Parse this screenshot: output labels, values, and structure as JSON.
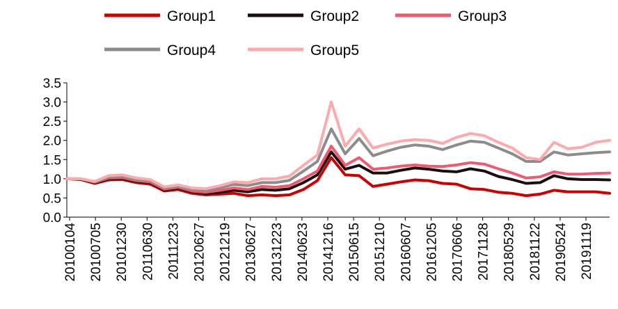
{
  "chart_data": {
    "type": "line",
    "title": "",
    "xlabel": "",
    "ylabel": "",
    "ylim": [
      0,
      3.5
    ],
    "y_ticks": [
      "0.0",
      "0.5",
      "1.0",
      "1.5",
      "2.0",
      "2.5",
      "3.0",
      "3.5"
    ],
    "x_tick_labels": [
      "20100104",
      "20100705",
      "20101230",
      "20110630",
      "20111223",
      "20120627",
      "20121219",
      "20130627",
      "20131223",
      "20140623",
      "20141216",
      "20150615",
      "20151210",
      "20160607",
      "20161205",
      "20170606",
      "20171128",
      "20180529",
      "20181122",
      "20190524",
      "20191119"
    ],
    "grid": false,
    "legend_position": "top",
    "series": [
      {
        "name": "Group1",
        "color": "#cc0000",
        "values": [
          1.0,
          0.98,
          0.88,
          0.97,
          0.98,
          0.9,
          0.86,
          0.68,
          0.72,
          0.62,
          0.58,
          0.6,
          0.62,
          0.56,
          0.58,
          0.56,
          0.58,
          0.72,
          0.95,
          1.55,
          1.1,
          1.08,
          0.8,
          0.86,
          0.92,
          0.97,
          0.95,
          0.88,
          0.86,
          0.74,
          0.72,
          0.65,
          0.62,
          0.56,
          0.6,
          0.7,
          0.66,
          0.66,
          0.66,
          0.62
        ]
      },
      {
        "name": "Group2",
        "color": "#1a0f0f",
        "values": [
          1.0,
          0.99,
          0.9,
          1.0,
          1.01,
          0.93,
          0.9,
          0.71,
          0.76,
          0.66,
          0.62,
          0.65,
          0.7,
          0.66,
          0.72,
          0.7,
          0.74,
          0.9,
          1.1,
          1.7,
          1.25,
          1.35,
          1.15,
          1.15,
          1.22,
          1.28,
          1.25,
          1.2,
          1.18,
          1.26,
          1.2,
          1.06,
          0.98,
          0.88,
          0.9,
          1.08,
          1.0,
          0.98,
          0.98,
          0.97
        ]
      },
      {
        "name": "Group3",
        "color": "#f05a70",
        "values": [
          1.0,
          1.0,
          0.91,
          1.02,
          1.03,
          0.95,
          0.92,
          0.73,
          0.78,
          0.68,
          0.65,
          0.7,
          0.76,
          0.72,
          0.8,
          0.78,
          0.82,
          1.0,
          1.2,
          1.85,
          1.35,
          1.55,
          1.25,
          1.28,
          1.33,
          1.36,
          1.33,
          1.32,
          1.36,
          1.42,
          1.38,
          1.26,
          1.15,
          1.02,
          1.05,
          1.18,
          1.12,
          1.12,
          1.14,
          1.15
        ]
      },
      {
        "name": "Group4",
        "color": "#8c8c8c",
        "values": [
          1.0,
          1.0,
          0.92,
          1.04,
          1.06,
          0.98,
          0.95,
          0.76,
          0.8,
          0.72,
          0.7,
          0.77,
          0.85,
          0.82,
          0.9,
          0.9,
          0.96,
          1.2,
          1.45,
          2.3,
          1.65,
          2.05,
          1.6,
          1.72,
          1.82,
          1.88,
          1.85,
          1.76,
          1.88,
          1.98,
          1.95,
          1.8,
          1.65,
          1.45,
          1.45,
          1.7,
          1.62,
          1.65,
          1.68,
          1.7
        ]
      },
      {
        "name": "Group5",
        "color": "#ffaaaa",
        "values": [
          1.0,
          1.0,
          0.93,
          1.08,
          1.1,
          1.02,
          0.98,
          0.79,
          0.84,
          0.76,
          0.74,
          0.82,
          0.92,
          0.9,
          1.0,
          1.0,
          1.07,
          1.35,
          1.62,
          3.0,
          1.85,
          2.3,
          1.8,
          1.9,
          1.98,
          2.02,
          2.0,
          1.92,
          2.08,
          2.18,
          2.12,
          1.95,
          1.8,
          1.55,
          1.5,
          1.95,
          1.78,
          1.82,
          1.95,
          2.0
        ]
      }
    ]
  }
}
